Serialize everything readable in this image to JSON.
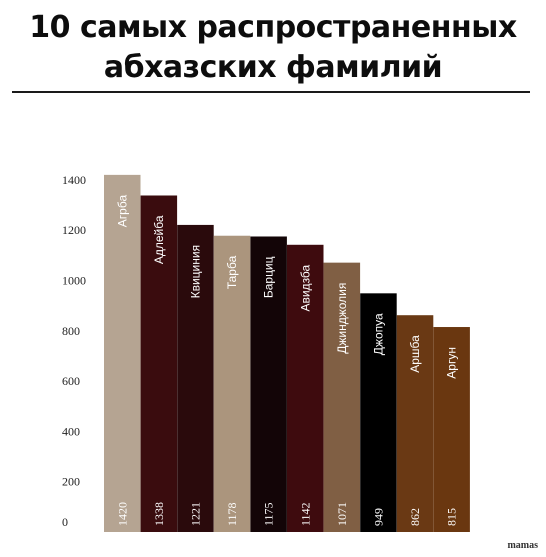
{
  "title_line1": "10 самых распространенных",
  "title_line2": "абхазских фамилий",
  "watermark": "mamas",
  "chart_data": {
    "type": "bar",
    "title": "10 самых распространенных абхазских фамилий",
    "categories": [
      "Агрба",
      "Адлейба",
      "Квициния",
      "Тарба",
      "Барциц",
      "Авидзба",
      "Джинджолия",
      "Джопуа",
      "Аршба",
      "Аргун"
    ],
    "values": [
      1420,
      1338,
      1221,
      1178,
      1175,
      1142,
      1071,
      949,
      862,
      815
    ],
    "value_labels": [
      "1420",
      "1338",
      "1221",
      "1178",
      "1175",
      "1142",
      "1071",
      "949",
      "862",
      "815"
    ],
    "colors": [
      "#b5a492",
      "#3a0c0e",
      "#2a0a0c",
      "#ab957d",
      "#130507",
      "#3e0b0e",
      "#805f44",
      "#000000",
      "#6a3914",
      "#6a3710"
    ],
    "yticks": [
      0,
      200,
      400,
      600,
      800,
      1000,
      1200,
      1400
    ],
    "ylim": [
      0,
      1500
    ],
    "xlabel": "",
    "ylabel": ""
  }
}
